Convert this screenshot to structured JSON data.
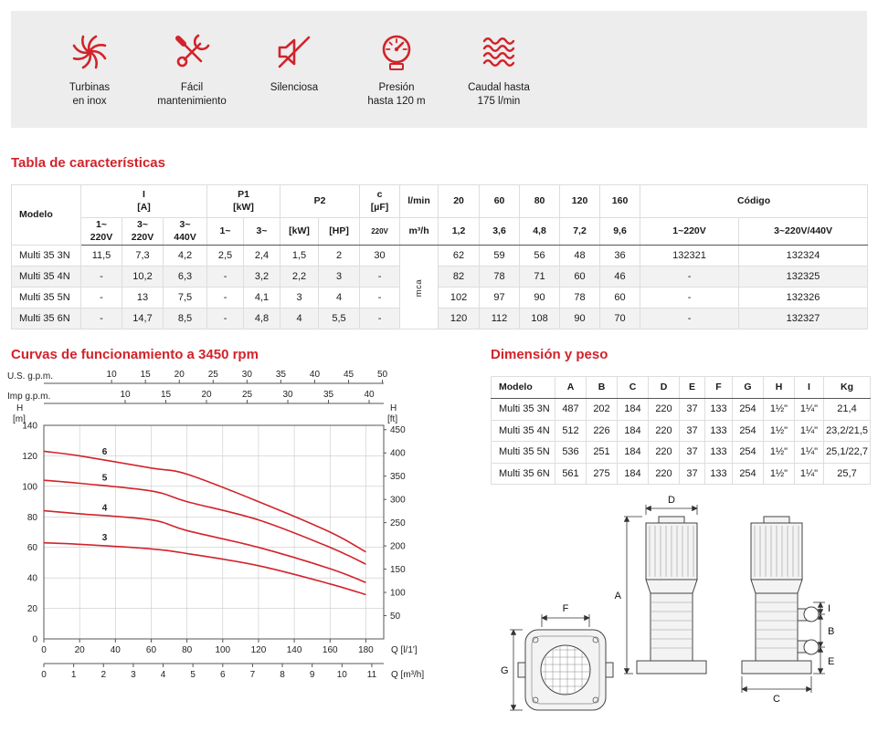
{
  "accent": "#d2232a",
  "banner": {
    "items": [
      {
        "icon": "impeller-icon",
        "label": "Turbinas\nen inox"
      },
      {
        "icon": "tools-icon",
        "label": "Fácil\nmantenimiento"
      },
      {
        "icon": "mute-icon",
        "label": "Silenciosa"
      },
      {
        "icon": "gauge-icon",
        "label": "Presión\nhasta 120 m"
      },
      {
        "icon": "waves-icon",
        "label": "Caudal hasta\n175 l/min"
      }
    ]
  },
  "sections": {
    "caracteristicas": "Tabla de características",
    "curvas": "Curvas de funcionamiento a 3450 rpm",
    "dimension": "Dimensión y peso"
  },
  "char_table": {
    "h": {
      "modelo": "Modelo",
      "i": "I\n[A]",
      "i1": "1~\n220V",
      "i3a": "3~\n220V",
      "i3b": "3~\n440V",
      "p1": "P1\n[kW]",
      "p1a": "1~",
      "p1b": "3~",
      "p2": "P2",
      "p2kw": "[kW]",
      "p2hp": "[HP]",
      "c": "c\n[µF]",
      "c2": "220V",
      "lmin": "l/min",
      "m3h": "m³/h",
      "f20": "20",
      "f60": "60",
      "f80": "80",
      "f120": "120",
      "f160": "160",
      "g12": "1,2",
      "g36": "3,6",
      "g48": "4,8",
      "g72": "7,2",
      "g96": "9,6",
      "codigo": "Código",
      "cod1": "1~220V",
      "cod3": "3~220V/440V"
    },
    "mca": "mca",
    "rows": [
      [
        "Multi 35 3N",
        "11,5",
        "7,3",
        "4,2",
        "2,5",
        "2,4",
        "1,5",
        "2",
        "30",
        "62",
        "59",
        "56",
        "48",
        "36",
        "132321",
        "132324"
      ],
      [
        "Multi 35 4N",
        "-",
        "10,2",
        "6,3",
        "-",
        "3,2",
        "2,2",
        "3",
        "-",
        "82",
        "78",
        "71",
        "60",
        "46",
        "-",
        "132325"
      ],
      [
        "Multi 35 5N",
        "-",
        "13",
        "7,5",
        "-",
        "4,1",
        "3",
        "4",
        "-",
        "102",
        "97",
        "90",
        "78",
        "60",
        "-",
        "132326"
      ],
      [
        "Multi 35 6N",
        "-",
        "14,7",
        "8,5",
        "-",
        "4,8",
        "4",
        "5,5",
        "-",
        "120",
        "112",
        "108",
        "90",
        "70",
        "-",
        "132327"
      ]
    ]
  },
  "dim_table": {
    "headers": [
      "Modelo",
      "A",
      "B",
      "C",
      "D",
      "E",
      "F",
      "G",
      "H",
      "I",
      "Kg"
    ],
    "rows": [
      [
        "Multi 35 3N",
        "487",
        "202",
        "184",
        "220",
        "37",
        "133",
        "254",
        "1½\"",
        "1¼\"",
        "21,4"
      ],
      [
        "Multi 35 4N",
        "512",
        "226",
        "184",
        "220",
        "37",
        "133",
        "254",
        "1½\"",
        "1¼\"",
        "23,2/21,5"
      ],
      [
        "Multi 35 5N",
        "536",
        "251",
        "184",
        "220",
        "37",
        "133",
        "254",
        "1½\"",
        "1¼\"",
        "25,1/22,7"
      ],
      [
        "Multi 35 6N",
        "561",
        "275",
        "184",
        "220",
        "37",
        "133",
        "254",
        "1½\"",
        "1¼\"",
        "25,7"
      ]
    ]
  },
  "drawing": {
    "labels": {
      "A": "A",
      "B": "B",
      "C": "C",
      "D": "D",
      "E": "E",
      "F": "F",
      "G": "G",
      "I": "I"
    }
  },
  "chart_data": {
    "type": "line",
    "title": "Curvas de funcionamiento a 3450 rpm",
    "x_axes": {
      "lmin": {
        "label": "Q [l/1']",
        "ticks": [
          0,
          20,
          40,
          60,
          80,
          100,
          120,
          140,
          160,
          180
        ],
        "max": 190
      },
      "m3h": {
        "label": "Q [m³/h]",
        "ticks": [
          0,
          1,
          2,
          3,
          4,
          5,
          6,
          7,
          8,
          9,
          10,
          11
        ]
      },
      "usgpm": {
        "label": "U.S. g.p.m.",
        "ticks": [
          10,
          15,
          20,
          25,
          30,
          35,
          40,
          45,
          50
        ]
      },
      "impgpm": {
        "label": "Imp g.p.m.",
        "ticks": [
          10,
          15,
          20,
          25,
          30,
          35,
          40
        ]
      }
    },
    "y_axes": {
      "m": {
        "label": "H",
        "unit": "[m]",
        "ticks": [
          0,
          20,
          40,
          60,
          80,
          100,
          120,
          140
        ],
        "max": 140
      },
      "ft": {
        "label": "H",
        "unit": "[ft]",
        "ticks": [
          50,
          100,
          150,
          200,
          250,
          300,
          350,
          400,
          450
        ]
      }
    },
    "grid": true,
    "series": [
      {
        "name": "6",
        "points": [
          [
            0,
            123
          ],
          [
            20,
            120
          ],
          [
            60,
            112
          ],
          [
            80,
            108
          ],
          [
            120,
            90
          ],
          [
            160,
            70
          ],
          [
            180,
            57
          ]
        ]
      },
      {
        "name": "5",
        "points": [
          [
            0,
            104
          ],
          [
            20,
            102
          ],
          [
            60,
            97
          ],
          [
            80,
            90
          ],
          [
            120,
            78
          ],
          [
            160,
            60
          ],
          [
            180,
            49
          ]
        ]
      },
      {
        "name": "4",
        "points": [
          [
            0,
            84
          ],
          [
            20,
            82
          ],
          [
            60,
            78
          ],
          [
            80,
            71
          ],
          [
            120,
            60
          ],
          [
            160,
            46
          ],
          [
            180,
            37
          ]
        ]
      },
      {
        "name": "3",
        "points": [
          [
            0,
            63
          ],
          [
            20,
            62
          ],
          [
            60,
            59
          ],
          [
            80,
            56
          ],
          [
            120,
            48
          ],
          [
            160,
            36
          ],
          [
            180,
            29
          ]
        ]
      }
    ]
  }
}
